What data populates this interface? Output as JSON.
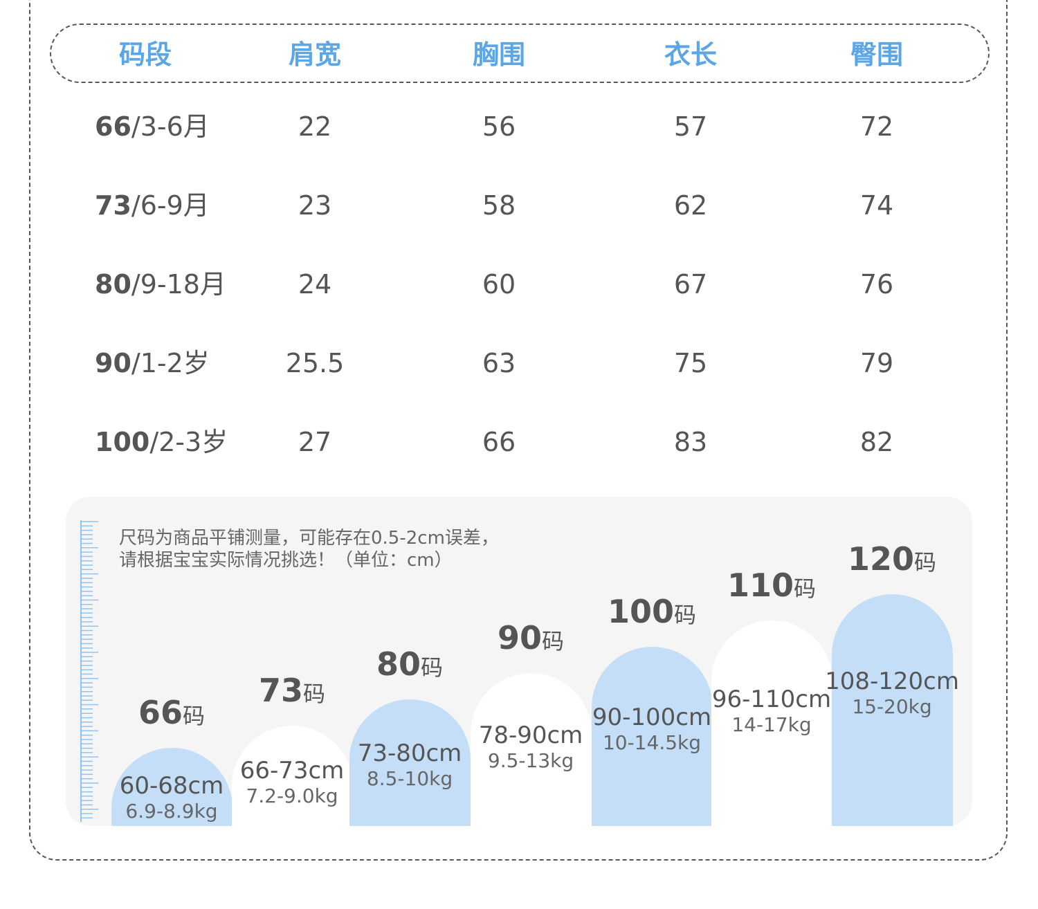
{
  "table": {
    "headers": [
      "码段",
      "肩宽",
      "胸围",
      "衣长",
      "臀围"
    ],
    "rows": [
      {
        "size": "66",
        "age": "/3-6月",
        "values": [
          "22",
          "56",
          "57",
          "72"
        ]
      },
      {
        "size": "73",
        "age": "/6-9月",
        "values": [
          "23",
          "58",
          "62",
          "74"
        ]
      },
      {
        "size": "80",
        "age": "/9-18月",
        "values": [
          "24",
          "60",
          "67",
          "76"
        ]
      },
      {
        "size": "90",
        "age": "/1-2岁",
        "values": [
          "25.5",
          "63",
          "75",
          "79"
        ]
      },
      {
        "size": "100",
        "age": "/2-3岁",
        "values": [
          "27",
          "66",
          "83",
          "82"
        ]
      }
    ]
  },
  "note": {
    "line1": "尺码为商品平铺测量，可能存在0.5-2cm误差，",
    "line2": "请根据宝宝实际情况挑选！（单位：cm）"
  },
  "size_chart": {
    "unit_suffix": "码",
    "sizes": [
      {
        "size": "66",
        "height": "60-68cm",
        "weight": "6.9-8.9kg",
        "style": "blue"
      },
      {
        "size": "73",
        "height": "66-73cm",
        "weight": "7.2-9.0kg",
        "style": "white"
      },
      {
        "size": "80",
        "height": "73-80cm",
        "weight": "8.5-10kg",
        "style": "blue"
      },
      {
        "size": "90",
        "height": "78-90cm",
        "weight": "9.5-13kg",
        "style": "white"
      },
      {
        "size": "100",
        "height": "90-100cm",
        "weight": "10-14.5kg",
        "style": "blue"
      },
      {
        "size": "110",
        "height": "96-110cm",
        "weight": "14-17kg",
        "style": "white"
      },
      {
        "size": "120",
        "height": "108-120cm",
        "weight": "15-20kg",
        "style": "blue"
      }
    ]
  },
  "colors": {
    "header_text": "#5aa6e6",
    "bar_blue": "#c4def8",
    "bar_white": "#ffffff",
    "panel_bg": "#f5f5f5",
    "ruler": "#8fc3f0"
  }
}
